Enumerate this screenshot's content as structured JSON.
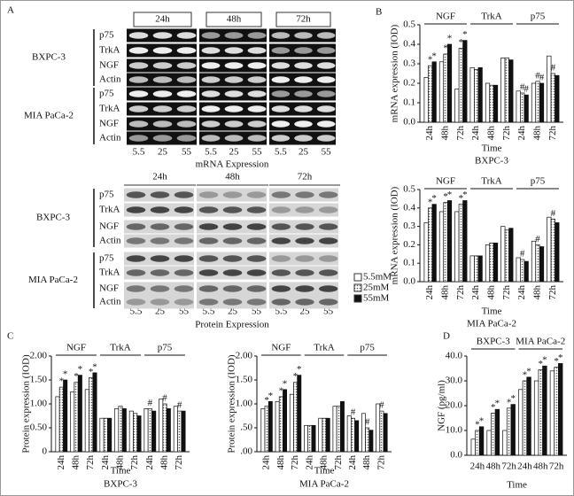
{
  "panel_labels": [
    "A",
    "B",
    "C",
    "D"
  ],
  "legend": [
    "5.5mM",
    "25mM",
    "55mM"
  ],
  "panel_a": {
    "mrna": {
      "times": [
        "24h",
        "48h",
        "72h"
      ],
      "lanes": [
        "5.5",
        "25",
        "55"
      ],
      "caption": "mRNA Expression",
      "cell_lines": [
        {
          "name": "BXPC-3",
          "rows": [
            "p75",
            "TrkA",
            "NGF",
            "Actin"
          ]
        },
        {
          "name": "MIA PaCa-2",
          "rows": [
            "p75",
            "TrkA",
            "NGF",
            "Actin"
          ]
        }
      ]
    },
    "protein": {
      "times": [
        "24h",
        "48h",
        "72h"
      ],
      "lanes": [
        "5.5",
        "25",
        "55"
      ],
      "caption": "Protein Expression",
      "cell_lines": [
        {
          "name": "BXPC-3",
          "rows": [
            "p75",
            "TrkA",
            "NGF",
            "Actin"
          ]
        },
        {
          "name": "MIA PaCa-2",
          "rows": [
            "p75",
            "TrkA",
            "NGF",
            "Actin"
          ]
        }
      ]
    }
  },
  "chart_data": [
    {
      "type": "bar",
      "title": "BXPC-3",
      "ylabel": "mRNA expression (IOD)",
      "xlabel": "Time",
      "rotate_x_labels": true,
      "ylim": [
        0,
        0.5
      ],
      "yticks": [
        {
          "value": 0,
          "label": "0.0"
        },
        0.1,
        0.2,
        0.3,
        0.4,
        0.5
      ],
      "groups": [
        {
          "label": "NGF",
          "categories": [
            "24h",
            "48h",
            "72h"
          ]
        },
        {
          "label": "TrkA",
          "categories": [
            "24h",
            "48h",
            "72h"
          ]
        },
        {
          "label": "p75",
          "categories": [
            "24h",
            "48h",
            "72h"
          ]
        }
      ],
      "series": [
        {
          "fill": "white",
          "values": [
            0.23,
            0.31,
            0.17,
            0.28,
            0.2,
            0.33,
            0.16,
            0.2,
            0.34
          ]
        },
        {
          "fill": "dotted",
          "values": [
            0.29,
            0.35,
            0.38,
            0.27,
            0.19,
            0.33,
            0.15,
            0.21,
            0.25
          ],
          "markers": [
            "*",
            "*",
            "*",
            null,
            null,
            null,
            "#",
            "#",
            "#"
          ]
        },
        {
          "fill": "black",
          "values": [
            0.31,
            0.4,
            0.42,
            0.28,
            0.19,
            0.32,
            0.14,
            0.2,
            0.24
          ],
          "markers": [
            "*",
            "*",
            "*",
            null,
            null,
            null,
            "#",
            "#",
            null
          ]
        }
      ]
    },
    {
      "type": "bar",
      "title": "MIA PaCa-2",
      "ylabel": "mRNA expression (IOD)",
      "xlabel": "Time",
      "rotate_x_labels": true,
      "ylim": [
        0,
        0.5
      ],
      "yticks": [
        {
          "value": 0,
          "label": "0.0"
        },
        0.1,
        0.2,
        0.3,
        0.4,
        0.5
      ],
      "groups": [
        {
          "label": "NGF",
          "categories": [
            "24h",
            "48h",
            "72h"
          ]
        },
        {
          "label": "TrkA",
          "categories": [
            "24h",
            "48h",
            "72h"
          ]
        },
        {
          "label": "p75",
          "categories": [
            "24h",
            "48h",
            "72h"
          ]
        }
      ],
      "series": [
        {
          "fill": "white",
          "values": [
            0.32,
            0.38,
            0.38,
            0.14,
            0.2,
            0.3,
            0.13,
            0.22,
            0.35
          ]
        },
        {
          "fill": "dotted",
          "values": [
            0.4,
            0.43,
            0.42,
            0.14,
            0.21,
            0.28,
            0.12,
            0.2,
            0.34
          ],
          "markers": [
            "*",
            "*",
            "*",
            null,
            null,
            null,
            "#",
            "#",
            "#"
          ]
        },
        {
          "fill": "black",
          "values": [
            0.42,
            0.44,
            0.44,
            0.14,
            0.21,
            0.29,
            0.11,
            0.19,
            0.32
          ],
          "markers": [
            "*",
            "*",
            "*",
            null,
            null,
            null,
            null,
            null,
            null
          ]
        }
      ]
    },
    {
      "type": "bar",
      "title": "BXPC-3",
      "ylabel": "Protein expression (IOD)",
      "xlabel": "Time",
      "rotate_x_labels": true,
      "ylim": [
        0,
        2
      ],
      "yticks": [
        0,
        {
          "value": 0.5,
          "label": "0.50"
        },
        {
          "value": 1,
          "label": "1.00"
        },
        {
          "value": 1.5,
          "label": "1.50"
        },
        {
          "value": 2,
          "label": "2.00"
        }
      ],
      "groups": [
        {
          "label": "NGF",
          "categories": [
            "24h",
            "48h",
            "72h"
          ]
        },
        {
          "label": "TrkA",
          "categories": [
            "24h",
            "48h",
            "72h"
          ]
        },
        {
          "label": "p75",
          "categories": [
            "24h",
            "48h",
            "72h"
          ]
        }
      ],
      "series": [
        {
          "fill": "white",
          "values": [
            1.15,
            1.25,
            1.3,
            0.7,
            0.9,
            0.85,
            0.9,
            1.1,
            0.95
          ]
        },
        {
          "fill": "dotted",
          "values": [
            1.35,
            1.45,
            1.55,
            0.7,
            0.95,
            0.8,
            0.9,
            1.0,
            0.85
          ],
          "markers": [
            "*",
            "*",
            "*",
            null,
            null,
            null,
            "#",
            "#",
            "#"
          ]
        },
        {
          "fill": "black",
          "values": [
            1.5,
            1.6,
            1.65,
            0.7,
            0.9,
            0.75,
            0.85,
            0.9,
            0.85
          ],
          "markers": [
            "*",
            "*",
            "*",
            null,
            null,
            null,
            null,
            null,
            null
          ]
        }
      ]
    },
    {
      "type": "bar",
      "title": "MIA PaCa-2",
      "ylabel": "Protein expression (IOD)",
      "xlabel": "Time",
      "rotate_x_labels": true,
      "ylim": [
        0,
        2
      ],
      "yticks": [
        {
          "value": 0,
          "label": ".00"
        },
        {
          "value": 0.5,
          "label": ".50"
        },
        {
          "value": 1,
          "label": "1.00"
        },
        {
          "value": 1.5,
          "label": "1.50"
        },
        {
          "value": 2,
          "label": "2.00"
        }
      ],
      "groups": [
        {
          "label": "NGF",
          "categories": [
            "24h",
            "48h",
            "72h"
          ]
        },
        {
          "label": "TrkA",
          "categories": [
            "24h",
            "48h",
            "72h"
          ]
        },
        {
          "label": "p75",
          "categories": [
            "24h",
            "48h",
            "72h"
          ]
        }
      ],
      "series": [
        {
          "fill": "white",
          "values": [
            0.9,
            1.05,
            1.2,
            0.55,
            0.7,
            0.95,
            0.75,
            0.8,
            1.0
          ]
        },
        {
          "fill": "dotted",
          "values": [
            0.95,
            1.15,
            1.45,
            0.55,
            0.7,
            0.95,
            0.7,
            0.5,
            0.85
          ],
          "markers": [
            "*",
            "*",
            "*",
            null,
            null,
            null,
            "#",
            "#",
            "#"
          ]
        },
        {
          "fill": "black",
          "values": [
            1.05,
            1.3,
            1.6,
            0.55,
            0.7,
            1.05,
            0.65,
            0.45,
            0.8
          ],
          "markers": [
            "*",
            "*",
            "*",
            null,
            null,
            null,
            null,
            null,
            null
          ]
        }
      ]
    },
    {
      "type": "bar",
      "ylabel": "NGF (pg/ml)",
      "xlabel": "Time",
      "rotate_x_labels": false,
      "ylim": [
        0,
        40
      ],
      "yticks": [
        {
          "value": 0,
          "label": "0.0"
        },
        {
          "value": 10,
          "label": "10.0"
        },
        {
          "value": 20,
          "label": "20.0"
        },
        {
          "value": 30,
          "label": "30.0"
        },
        {
          "value": 40,
          "label": "40.0"
        }
      ],
      "groups": [
        {
          "label": "BXPC-3",
          "categories": [
            "24h",
            "48h",
            "72h"
          ]
        },
        {
          "label": "MIA PaCa-2",
          "categories": [
            "24h",
            "48h",
            "72h"
          ]
        }
      ],
      "series": [
        {
          "fill": "white",
          "values": [
            6.5,
            10,
            10,
            26.5,
            30,
            34
          ]
        },
        {
          "fill": "dotted",
          "values": [
            10,
            17,
            19,
            30,
            34.5,
            35.5
          ],
          "markers": [
            "*",
            "*",
            "*",
            "*",
            "*",
            "*"
          ]
        },
        {
          "fill": "black",
          "values": [
            11.5,
            18.5,
            20.5,
            31.5,
            36,
            37
          ],
          "markers": [
            "*",
            "*",
            "*",
            "*",
            "*",
            "*"
          ]
        }
      ]
    }
  ]
}
